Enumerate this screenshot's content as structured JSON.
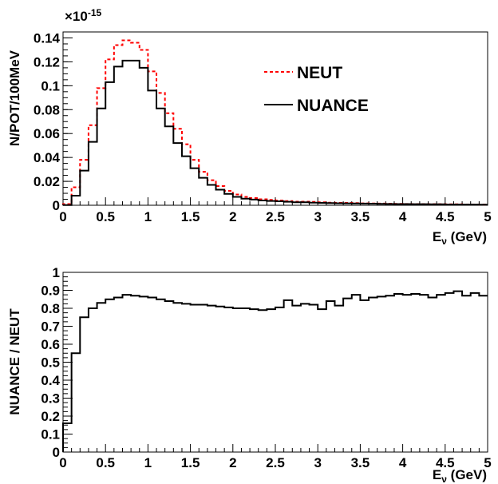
{
  "chart_data": [
    {
      "type": "line",
      "step": true,
      "xlabel": "E",
      "xlabel_sub": "ν",
      "xlabel_unit": "(GeV)",
      "ylabel": "N/POT/100MeV",
      "y_exponent": "×10",
      "y_exponent_power": "-15",
      "xlim": [
        0,
        5
      ],
      "ylim": [
        0,
        0.145
      ],
      "x_ticks": [
        "0",
        "0.5",
        "1",
        "1.5",
        "2",
        "2.5",
        "3",
        "3.5",
        "4",
        "4.5",
        "5"
      ],
      "y_ticks": [
        "0",
        "0.02",
        "0.04",
        "0.06",
        "0.08",
        "0.1",
        "0.12",
        "0.14"
      ],
      "grid": false,
      "legend_position": "top-right",
      "bin_edges": [
        0,
        0.1,
        0.2,
        0.3,
        0.4,
        0.5,
        0.6,
        0.7,
        0.8,
        0.9,
        1.0,
        1.1,
        1.2,
        1.3,
        1.4,
        1.5,
        1.6,
        1.7,
        1.8,
        1.9,
        2.0,
        2.1,
        2.2,
        2.3,
        2.4,
        2.5,
        2.6,
        2.7,
        2.8,
        2.9,
        3.0,
        3.1,
        3.2,
        3.3,
        3.4,
        3.5,
        3.6,
        3.7,
        3.8,
        3.9,
        4.0,
        4.1,
        4.2,
        4.3,
        4.4,
        4.5,
        4.6,
        4.7,
        4.8,
        4.9,
        5.0
      ],
      "series": [
        {
          "name": "NEUT",
          "color": "#ff0000",
          "dash": "dashed",
          "values": [
            0.001,
            0.015,
            0.038,
            0.067,
            0.098,
            0.122,
            0.134,
            0.138,
            0.136,
            0.13,
            0.112,
            0.094,
            0.077,
            0.064,
            0.051,
            0.038,
            0.028,
            0.021,
            0.016,
            0.012,
            0.009,
            0.007,
            0.006,
            0.005,
            0.0045,
            0.004,
            0.0035,
            0.003,
            0.003,
            0.0028,
            0.0025,
            0.0022,
            0.002,
            0.002,
            0.0018,
            0.0016,
            0.0015,
            0.0014,
            0.0013,
            0.0012,
            0.0011,
            0.001,
            0.001,
            0.0009,
            0.0009,
            0.0008,
            0.0008,
            0.0007,
            0.0007,
            0.0006
          ]
        },
        {
          "name": "NUANCE",
          "color": "#000000",
          "dash": "solid",
          "values": [
            0.0002,
            0.008,
            0.029,
            0.053,
            0.081,
            0.103,
            0.116,
            0.121,
            0.121,
            0.115,
            0.096,
            0.081,
            0.066,
            0.052,
            0.041,
            0.031,
            0.023,
            0.017,
            0.013,
            0.0095,
            0.007,
            0.0055,
            0.0048,
            0.004,
            0.0036,
            0.0033,
            0.0029,
            0.0025,
            0.0025,
            0.0022,
            0.002,
            0.0018,
            0.0017,
            0.0016,
            0.0015,
            0.0014,
            0.0013,
            0.0012,
            0.0011,
            0.001,
            0.001,
            0.0009,
            0.0009,
            0.0008,
            0.0008,
            0.0007,
            0.0007,
            0.0006,
            0.0006,
            0.0005
          ]
        }
      ]
    },
    {
      "type": "line",
      "step": true,
      "xlabel": "E",
      "xlabel_sub": "ν",
      "xlabel_unit": "(GeV)",
      "ylabel": "NUANCE / NEUT",
      "xlim": [
        0,
        5
      ],
      "ylim": [
        0,
        1
      ],
      "x_ticks": [
        "0",
        "0.5",
        "1",
        "1.5",
        "2",
        "2.5",
        "3",
        "3.5",
        "4",
        "4.5",
        "5"
      ],
      "y_ticks": [
        "0",
        "0.1",
        "0.2",
        "0.3",
        "0.4",
        "0.5",
        "0.6",
        "0.7",
        "0.8",
        "0.9",
        "1"
      ],
      "grid": false,
      "bin_edges": [
        0,
        0.1,
        0.2,
        0.3,
        0.4,
        0.5,
        0.6,
        0.7,
        0.8,
        0.9,
        1.0,
        1.1,
        1.2,
        1.3,
        1.4,
        1.5,
        1.6,
        1.7,
        1.8,
        1.9,
        2.0,
        2.1,
        2.2,
        2.3,
        2.4,
        2.5,
        2.6,
        2.7,
        2.8,
        2.9,
        3.0,
        3.1,
        3.2,
        3.3,
        3.4,
        3.5,
        3.6,
        3.7,
        3.8,
        3.9,
        4.0,
        4.1,
        4.2,
        4.3,
        4.4,
        4.5,
        4.6,
        4.7,
        4.8,
        4.9,
        5.0
      ],
      "series": [
        {
          "color": "#000000",
          "dash": "solid",
          "values": [
            0.16,
            0.55,
            0.75,
            0.8,
            0.83,
            0.85,
            0.86,
            0.875,
            0.87,
            0.865,
            0.86,
            0.85,
            0.84,
            0.83,
            0.825,
            0.82,
            0.82,
            0.815,
            0.81,
            0.805,
            0.8,
            0.8,
            0.795,
            0.79,
            0.795,
            0.805,
            0.845,
            0.815,
            0.825,
            0.82,
            0.795,
            0.84,
            0.815,
            0.855,
            0.875,
            0.845,
            0.86,
            0.865,
            0.87,
            0.88,
            0.875,
            0.88,
            0.875,
            0.86,
            0.875,
            0.885,
            0.895,
            0.87,
            0.885,
            0.87
          ]
        }
      ]
    }
  ]
}
